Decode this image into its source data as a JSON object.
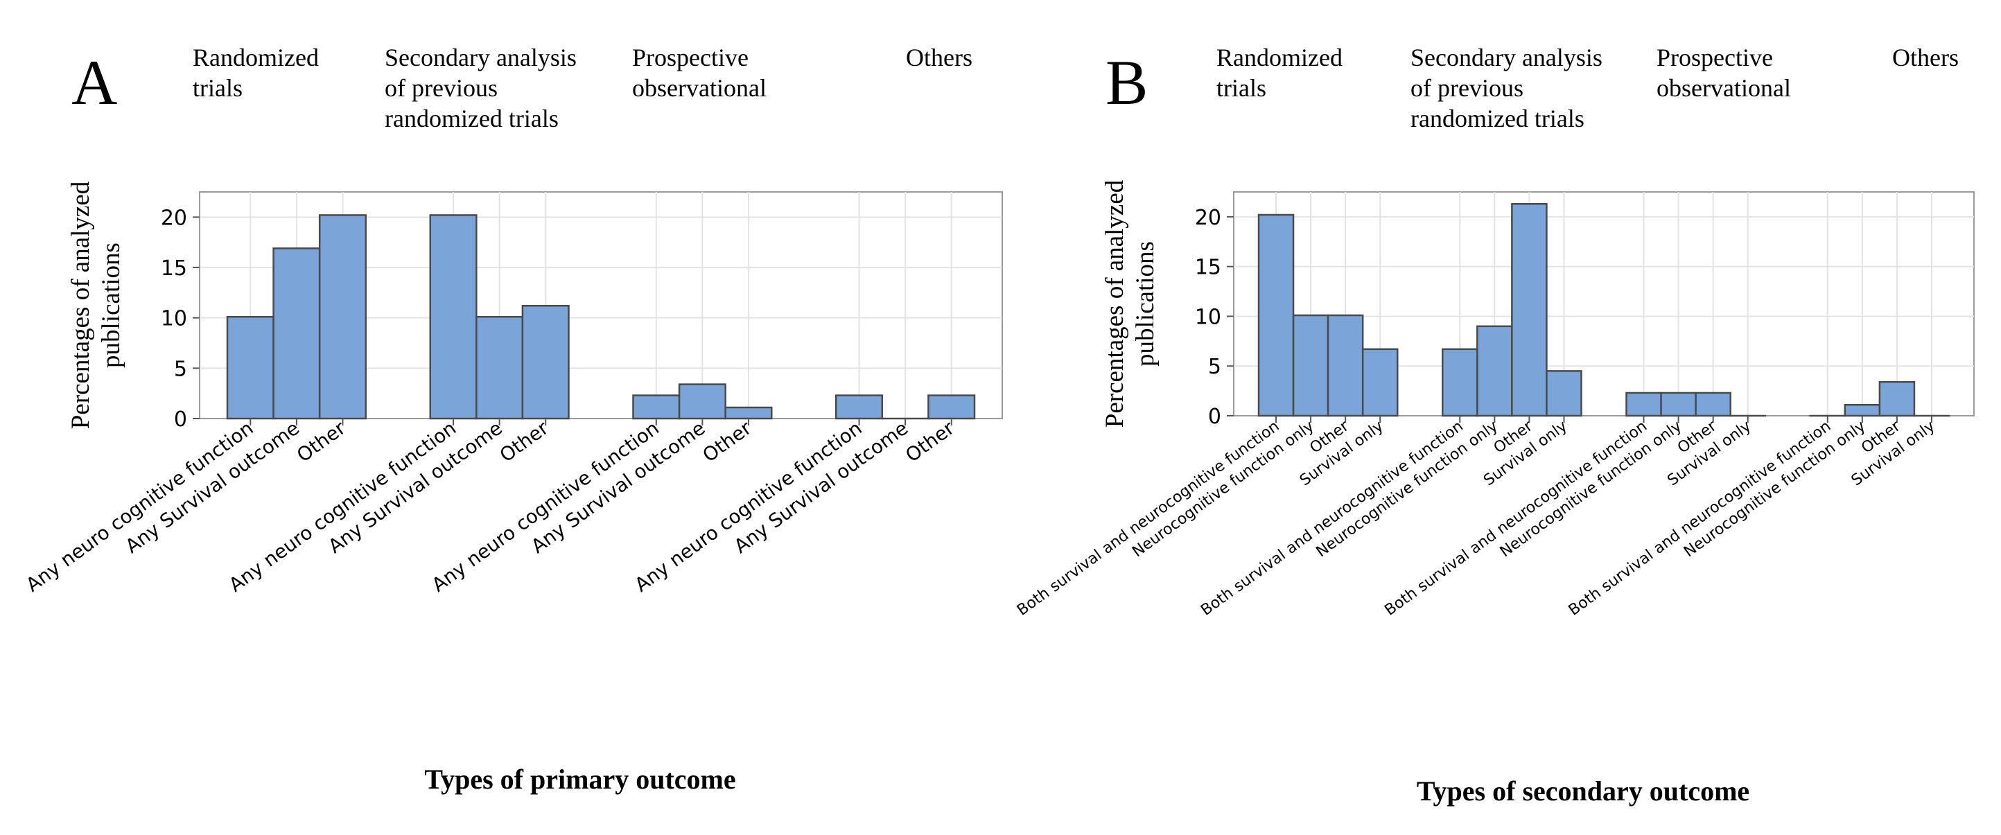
{
  "bar_color": "#7ba4d9",
  "chart_data": [
    {
      "type": "bar",
      "panel_letter": "A",
      "xlabel": "Types of primary outcome",
      "ylabel_lines": [
        "Percentages of analyzed",
        "publications"
      ],
      "ylim": [
        0,
        22.5
      ],
      "yticks": [
        0,
        5,
        10,
        15,
        20
      ],
      "grid": true,
      "groups": [
        {
          "name_lines": [
            "Randomized",
            "trials"
          ],
          "categories": [
            "Any neuro cognitive function",
            "Any Survival outcome",
            "Other"
          ],
          "values": [
            10.1,
            16.9,
            20.2
          ]
        },
        {
          "name_lines": [
            "Secondary analysis",
            "of previous",
            "randomized trials"
          ],
          "categories": [
            "Any neuro cognitive function",
            "Any Survival outcome",
            "Other"
          ],
          "values": [
            20.2,
            10.1,
            11.2
          ]
        },
        {
          "name_lines": [
            "Prospective",
            "observational"
          ],
          "categories": [
            "Any neuro cognitive function",
            "Any Survival outcome",
            "Other"
          ],
          "values": [
            2.3,
            3.4,
            1.1
          ]
        },
        {
          "name_lines": [
            "Others"
          ],
          "categories": [
            "Any neuro cognitive function",
            "Any Survival outcome",
            "Other"
          ],
          "values": [
            2.3,
            0.0,
            2.3
          ]
        }
      ]
    },
    {
      "type": "bar",
      "panel_letter": "B",
      "xlabel": "Types of secondary outcome",
      "ylabel_lines": [
        "Percentages of analyzed",
        "publications"
      ],
      "ylim": [
        0,
        22.5
      ],
      "yticks": [
        0,
        5,
        10,
        15,
        20
      ],
      "grid": true,
      "groups": [
        {
          "name_lines": [
            "Randomized",
            "trials"
          ],
          "categories": [
            "Both survival and neurocognitive function",
            "Neurocognitive function only",
            "Other",
            "Survival only"
          ],
          "values": [
            20.2,
            10.1,
            10.1,
            6.7
          ]
        },
        {
          "name_lines": [
            "Secondary analysis",
            "of previous",
            "randomized trials"
          ],
          "categories": [
            "Both survival and neurocognitive function",
            "Neurocognitive function only",
            "Other",
            "Survival only"
          ],
          "values": [
            6.7,
            9.0,
            21.3,
            4.5
          ]
        },
        {
          "name_lines": [
            "Prospective",
            "observational"
          ],
          "categories": [
            "Both survival and neurocognitive function",
            "Neurocognitive function only",
            "Other",
            "Survival only"
          ],
          "values": [
            2.3,
            2.3,
            2.3,
            0.0
          ]
        },
        {
          "name_lines": [
            "Others"
          ],
          "categories": [
            "Both survival and neurocognitive function",
            "Neurocognitive function only",
            "Other",
            "Survival only"
          ],
          "values": [
            0.0,
            1.1,
            3.4,
            0.0
          ]
        }
      ]
    }
  ]
}
